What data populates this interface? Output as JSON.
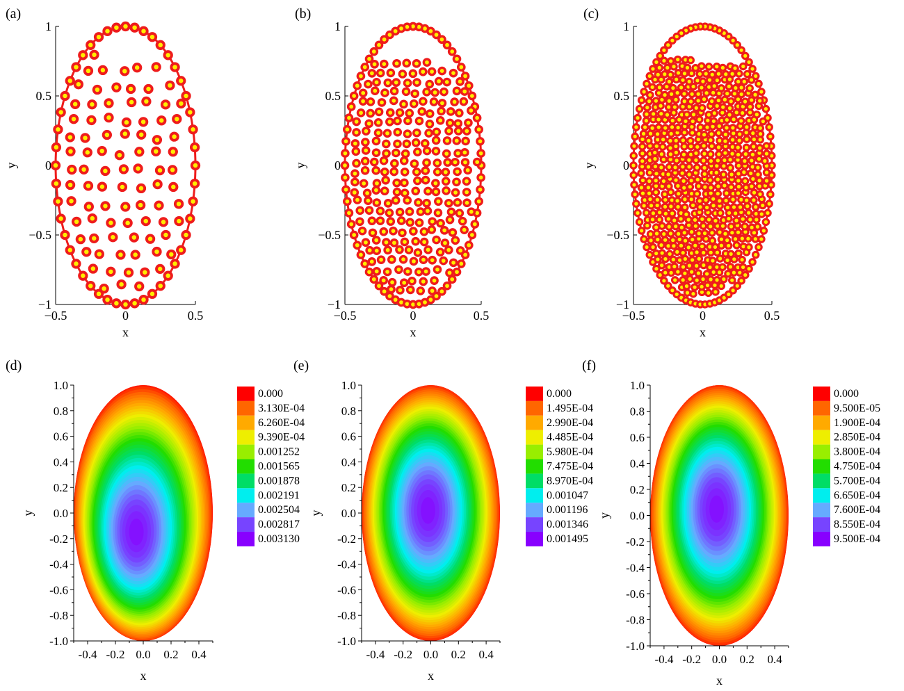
{
  "chart_data": [
    {
      "panel": "(a)",
      "type": "scatter",
      "xlabel": "x",
      "ylabel": "y",
      "xlim": [
        -0.5,
        0.5
      ],
      "ylim": [
        -1,
        1
      ],
      "xticks": [
        "−0.5",
        "0",
        "0.5"
      ],
      "yticks": [
        "−1",
        "−0.5",
        "0",
        "0.5",
        "1"
      ],
      "boundary": {
        "shape": "ellipse",
        "a": 0.5,
        "b": 1,
        "color": "#ee1c1c"
      },
      "points": {
        "boundary_nodes": 48,
        "interior_nodes": 88,
        "fill": "#ffee00",
        "edge": "#ee1c1c"
      }
    },
    {
      "panel": "(b)",
      "type": "scatter",
      "xlabel": "x",
      "ylabel": "y",
      "xlim": [
        -0.5,
        0.5
      ],
      "ylim": [
        -1,
        1
      ],
      "xticks": [
        "−0.5",
        "0",
        "0.5"
      ],
      "yticks": [
        "−1",
        "−0.5",
        "0",
        "0.5",
        "1"
      ],
      "boundary": {
        "shape": "ellipse",
        "a": 0.5,
        "b": 1,
        "color": "#ee1c1c"
      },
      "points": {
        "boundary_nodes": 72,
        "interior_nodes": 250,
        "fill": "#ffee00",
        "edge": "#ee1c1c"
      }
    },
    {
      "panel": "(c)",
      "type": "scatter",
      "xlabel": "x",
      "ylabel": "y",
      "xlim": [
        -0.5,
        0.5
      ],
      "ylim": [
        -1,
        1
      ],
      "xticks": [
        "−0.5",
        "0",
        "0.5"
      ],
      "yticks": [
        "−1",
        "−0.5",
        "0",
        "0.5",
        "1"
      ],
      "boundary": {
        "shape": "ellipse",
        "a": 0.5,
        "b": 1,
        "color": "#ee1c1c"
      },
      "points": {
        "boundary_nodes": 90,
        "interior_nodes": 560,
        "fill": "#ffee00",
        "edge": "#ee1c1c"
      }
    },
    {
      "panel": "(d)",
      "type": "heatmap",
      "xlabel": "x",
      "ylabel": "y",
      "xlim": [
        -0.5,
        0.5
      ],
      "ylim": [
        -1,
        1
      ],
      "xticks": [
        "-0.4",
        "-0.2",
        "0.0",
        "0.2",
        "0.4"
      ],
      "yticks": [
        "1.0",
        "0.8",
        "0.6",
        "0.4",
        "0.2",
        "0.0",
        "-0.2",
        "-0.4",
        "-0.6",
        "-0.8",
        "-1.0"
      ],
      "domain": {
        "shape": "ellipse",
        "a": 0.5,
        "b": 1
      },
      "minimum": {
        "x": -0.05,
        "y": -0.15,
        "value": 0.00313
      },
      "legend": [
        "0.000",
        "3.130E-04",
        "6.260E-04",
        "9.390E-04",
        "0.001252",
        "0.001565",
        "0.001878",
        "0.002191",
        "0.002504",
        "0.002817",
        "0.003130"
      ]
    },
    {
      "panel": "(e)",
      "type": "heatmap",
      "xlabel": "x",
      "ylabel": "y",
      "xlim": [
        -0.5,
        0.5
      ],
      "ylim": [
        -1,
        1
      ],
      "xticks": [
        "-0.4",
        "-0.2",
        "0.0",
        "0.2",
        "0.4"
      ],
      "yticks": [
        "1.0",
        "0.8",
        "0.6",
        "0.4",
        "0.2",
        "0.0",
        "-0.2",
        "-0.4",
        "-0.6",
        "-0.8",
        "-1.0"
      ],
      "domain": {
        "shape": "ellipse",
        "a": 0.5,
        "b": 1
      },
      "minimum": {
        "x": -0.02,
        "y": 0.02,
        "value": 0.001495
      },
      "legend": [
        "0.000",
        "1.495E-04",
        "2.990E-04",
        "4.485E-04",
        "5.980E-04",
        "7.475E-04",
        "8.970E-04",
        "0.001047",
        "0.001196",
        "0.001346",
        "0.001495"
      ]
    },
    {
      "panel": "(f)",
      "type": "heatmap",
      "xlabel": "x",
      "ylabel": "y",
      "xlim": [
        -0.5,
        0.5
      ],
      "ylim": [
        -1,
        1
      ],
      "xticks": [
        "-0.4",
        "-0.2",
        "0.0",
        "0.2",
        "0.4"
      ],
      "yticks": [
        "1.0",
        "0.8",
        "0.6",
        "0.4",
        "0.2",
        "0.0",
        "-0.2",
        "-0.4",
        "-0.6",
        "-0.8",
        "-1.0"
      ],
      "domain": {
        "shape": "ellipse",
        "a": 0.5,
        "b": 1
      },
      "minimum": {
        "x": -0.02,
        "y": 0.05,
        "value": 0.00095
      },
      "legend": [
        "0.000",
        "9.500E-05",
        "1.900E-04",
        "2.850E-04",
        "3.800E-04",
        "4.750E-04",
        "5.700E-04",
        "6.650E-04",
        "7.600E-04",
        "8.550E-04",
        "9.500E-04"
      ]
    }
  ],
  "colormap": [
    "#ff0000",
    "#ff6600",
    "#ffaa00",
    "#eeee00",
    "#99ee00",
    "#22dd00",
    "#00dd66",
    "#00eeee",
    "#66aaff",
    "#7744ff",
    "#8800ff"
  ]
}
